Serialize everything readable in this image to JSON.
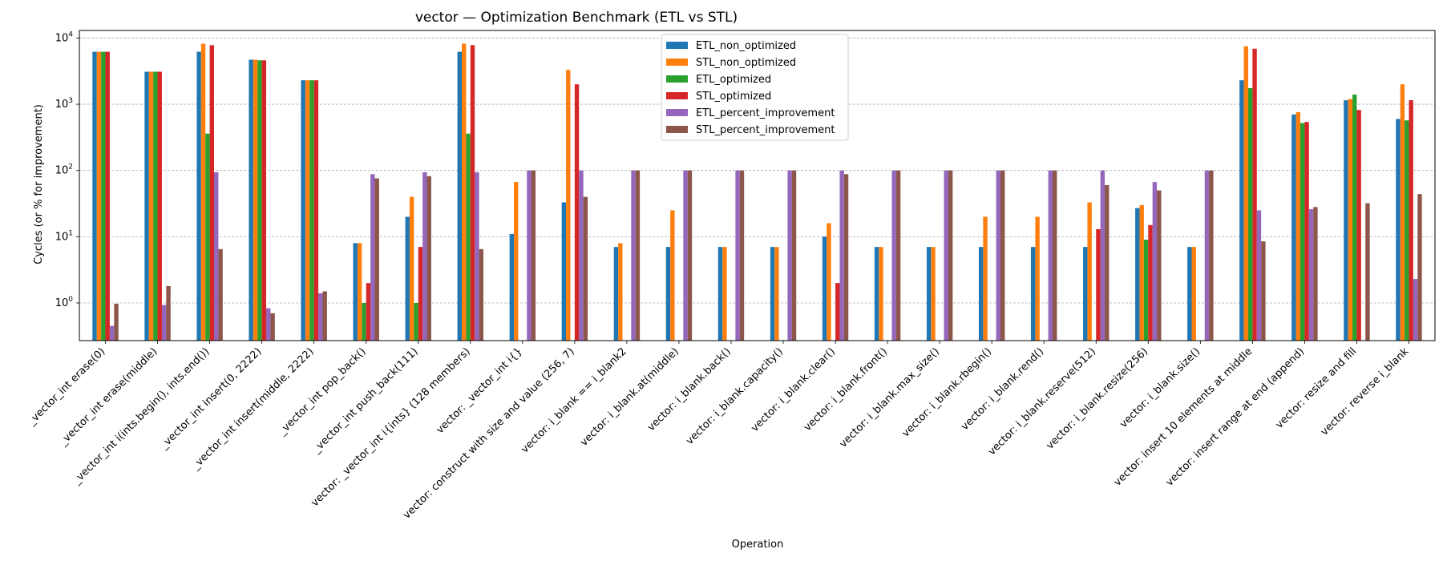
{
  "chart_data": {
    "type": "bar",
    "title": "vector — Optimization Benchmark (ETL vs STL)",
    "xlabel": "Operation",
    "ylabel": "Cycles (or % for improvement)",
    "yscale": "log",
    "ylim": [
      0.27,
      13000
    ],
    "yticks": [
      {
        "value": 1,
        "base": "10",
        "exp": "0"
      },
      {
        "value": 10,
        "base": "10",
        "exp": "1"
      },
      {
        "value": 100,
        "base": "10",
        "exp": "2"
      },
      {
        "value": 1000,
        "base": "10",
        "exp": "3"
      },
      {
        "value": 10000,
        "base": "10",
        "exp": "4"
      }
    ],
    "grid": "y",
    "legend_position": "top-center",
    "categories": [
      "_vector_int erase(0)",
      "_vector_int erase(middle)",
      "_vector_int i(ints.begin(), ints.end())",
      "_vector_int insert(0, 2222)",
      "_vector_int insert(middle, 2222)",
      "_vector_int pop_back()",
      "_vector_int push_back(111)",
      "vector: _vector_int i{ints} (128 members)",
      "vector: _vector_int i{}",
      "vector: construct with size and value (256, 7)",
      "vector: i_blank == i_blank2",
      "vector: i_blank.at(middle)",
      "vector: i_blank.back()",
      "vector: i_blank.capacity()",
      "vector: i_blank.clear()",
      "vector: i_blank.front()",
      "vector: i_blank.max_size()",
      "vector: i_blank.rbegin()",
      "vector: i_blank.rend()",
      "vector: i_blank.reserve(512)",
      "vector: i_blank.resize(256)",
      "vector: i_blank.size()",
      "vector: insert 10 elements at middle",
      "vector: insert range at end (append)",
      "vector: resize and fill",
      "vector: reverse i_blank"
    ],
    "series": [
      {
        "name": "ETL_non_optimized",
        "color": "#1f77b4",
        "values": [
          6200,
          3100,
          6200,
          4700,
          2300,
          8,
          20,
          6200,
          11,
          33,
          7,
          7,
          7,
          7,
          10,
          7,
          7,
          7,
          7,
          7,
          27,
          7,
          2300,
          700,
          1150,
          600
        ]
      },
      {
        "name": "STL_non_optimized",
        "color": "#ff7f0e",
        "values": [
          6200,
          3100,
          8200,
          4700,
          2300,
          8,
          40,
          8200,
          67,
          3300,
          8,
          25,
          7,
          7,
          16,
          7,
          7,
          20,
          20,
          33,
          30,
          7,
          7500,
          760,
          1200,
          2000
        ]
      },
      {
        "name": "ETL_optimized",
        "color": "#2ca02c",
        "values": [
          6200,
          3100,
          360,
          4600,
          2300,
          1,
          1,
          360,
          null,
          null,
          null,
          null,
          null,
          null,
          null,
          null,
          null,
          null,
          null,
          null,
          9,
          null,
          1750,
          520,
          1400,
          570
        ]
      },
      {
        "name": "STL_optimized",
        "color": "#d62728",
        "values": [
          6200,
          3100,
          7800,
          4600,
          2300,
          2,
          7,
          7800,
          null,
          2000,
          null,
          null,
          null,
          null,
          2,
          null,
          null,
          null,
          null,
          13,
          15,
          null,
          6900,
          540,
          820,
          1150
        ]
      },
      {
        "name": "ETL_percent_improvement",
        "color": "#9467bd",
        "values": [
          0.45,
          0.93,
          94,
          0.83,
          1.4,
          88,
          94,
          94,
          100,
          100,
          100,
          100,
          100,
          100,
          100,
          100,
          100,
          100,
          100,
          100,
          67,
          100,
          25,
          26,
          null,
          2.3
        ]
      },
      {
        "name": "STL_percent_improvement",
        "color": "#8c564b",
        "values": [
          0.97,
          1.8,
          6.5,
          0.7,
          1.5,
          76,
          82,
          6.5,
          100,
          40,
          100,
          100,
          100,
          100,
          88,
          100,
          100,
          100,
          100,
          60,
          50,
          100,
          8.5,
          28,
          32,
          44
        ]
      }
    ]
  }
}
